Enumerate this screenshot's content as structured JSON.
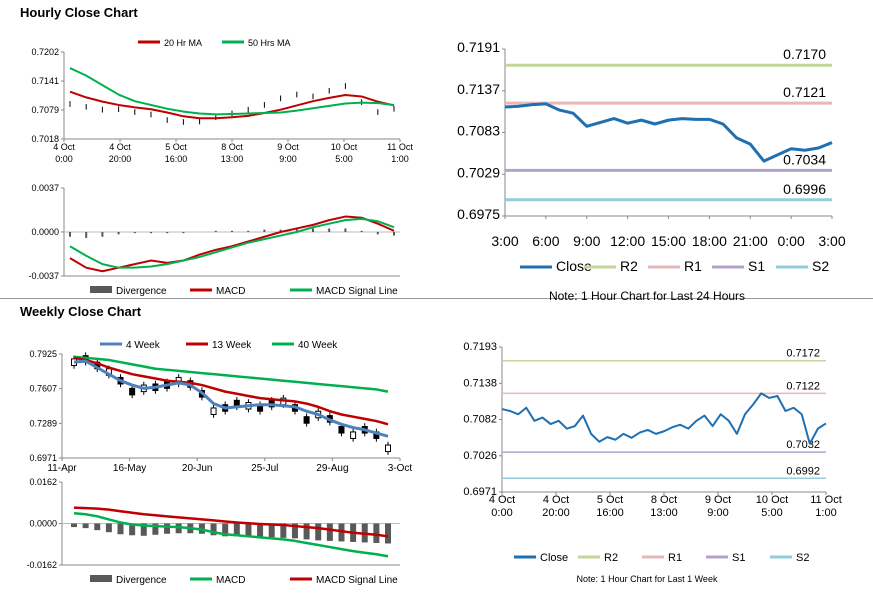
{
  "sections": {
    "hourly_title": "Hourly Close Chart",
    "weekly_title": "Weekly Close Chart"
  },
  "colors": {
    "ma_fast": "#c00000",
    "ma_slow": "#00b050",
    "week4": "#4f81bd",
    "close": "#1f6fb2",
    "r2": "#c3d69b",
    "r1": "#e6b9b8",
    "s1": "#b3a2c7",
    "s2": "#93cddd",
    "hist": "#595959"
  },
  "chart_data": [
    {
      "id": "hourly_price",
      "type": "line",
      "legend": [
        "20 Hr MA",
        "50 Hrs MA"
      ],
      "legend_position": "top",
      "yticks": [
        "0.7202",
        "0.7141",
        "0.7079",
        "0.7018"
      ],
      "ylim": [
        0.7018,
        0.7202
      ],
      "xticks": [
        [
          "4 Oct",
          "0:00"
        ],
        [
          "4 Oct",
          "20:00"
        ],
        [
          "5 Oct",
          "16:00"
        ],
        [
          "8 Oct",
          "13:00"
        ],
        [
          "9 Oct",
          "9:00"
        ],
        [
          "10 Oct",
          "5:00"
        ],
        [
          "11 Oct",
          "1:00"
        ]
      ],
      "x": [
        0,
        6,
        12,
        18,
        24,
        30,
        36,
        42,
        48,
        54,
        60,
        66,
        72,
        78,
        84,
        90,
        96,
        102,
        108,
        114,
        120
      ],
      "series": [
        {
          "name": "Close",
          "style": "ohlc",
          "values": [
            0.7092,
            0.7086,
            0.708,
            0.7081,
            0.7075,
            0.707,
            0.7058,
            0.7054,
            0.7055,
            0.7064,
            0.7072,
            0.708,
            0.709,
            0.7104,
            0.7112,
            0.7108,
            0.712,
            0.713,
            0.7096,
            0.7075,
            0.7082
          ]
        },
        {
          "name": "20 Hr MA",
          "values": [
            0.7118,
            0.7106,
            0.7097,
            0.709,
            0.7085,
            0.7081,
            0.7074,
            0.7066,
            0.7062,
            0.7062,
            0.7064,
            0.7067,
            0.7073,
            0.708,
            0.7089,
            0.7098,
            0.7105,
            0.7111,
            0.7108,
            0.7097,
            0.7089
          ]
        },
        {
          "name": "50 Hrs MA",
          "values": [
            0.7168,
            0.7152,
            0.7132,
            0.7112,
            0.7098,
            0.709,
            0.7082,
            0.7076,
            0.7072,
            0.707,
            0.7071,
            0.7072,
            0.7073,
            0.7074,
            0.7078,
            0.7083,
            0.7088,
            0.7093,
            0.7095,
            0.7094,
            0.709
          ]
        }
      ]
    },
    {
      "id": "hourly_macd",
      "type": "line",
      "legend": [
        "Divergence",
        "MACD",
        "MACD Signal Line"
      ],
      "legend_position": "bottom",
      "yticks": [
        "0.0037",
        "0.0000",
        "-0.0037"
      ],
      "ylim": [
        -0.0037,
        0.0037
      ],
      "x": [
        0,
        6,
        12,
        18,
        24,
        30,
        36,
        42,
        48,
        54,
        60,
        66,
        72,
        78,
        84,
        90,
        96,
        102,
        108,
        114,
        120
      ],
      "series": [
        {
          "name": "MACD",
          "values": [
            -0.0022,
            -0.003,
            -0.0033,
            -0.003,
            -0.0027,
            -0.0024,
            -0.0026,
            -0.0024,
            -0.0019,
            -0.0015,
            -0.0012,
            -0.0008,
            -0.0004,
            0.0,
            0.0003,
            0.0006,
            0.001,
            0.0013,
            0.0012,
            0.0007,
            0.0001
          ]
        },
        {
          "name": "MACD Signal Line",
          "values": [
            -0.0012,
            -0.002,
            -0.0027,
            -0.003,
            -0.003,
            -0.0029,
            -0.0027,
            -0.0024,
            -0.0021,
            -0.0017,
            -0.0013,
            -0.0009,
            -0.0006,
            -0.0003,
            0.0,
            0.0004,
            0.0007,
            0.001,
            0.0011,
            0.0009,
            0.0004
          ]
        },
        {
          "name": "Divergence",
          "style": "bar",
          "values": [
            -0.0004,
            -0.0005,
            -0.0004,
            -0.0002,
            -0.0001,
            -0.0001,
            -0.0001,
            -0.0001,
            0.0,
            0.0001,
            0.0001,
            0.0001,
            0.0002,
            0.0002,
            0.0003,
            0.0003,
            0.0003,
            0.0003,
            0.0001,
            -0.0002,
            -0.0003
          ]
        }
      ]
    },
    {
      "id": "hourly_levels",
      "type": "line",
      "note": "Note: 1 Hour Chart for Last 24 Hours",
      "legend": [
        "Close",
        "R2",
        "R1",
        "S1",
        "S2"
      ],
      "legend_position": "bottom",
      "yticks": [
        "0.7191",
        "0.7137",
        "0.7083",
        "0.7029",
        "0.6975"
      ],
      "ylim": [
        0.6975,
        0.7191
      ],
      "xticks": [
        "3:00",
        "6:00",
        "9:00",
        "12:00",
        "15:00",
        "18:00",
        "21:00",
        "0:00",
        "3:00"
      ],
      "x": [
        0,
        1,
        2,
        3,
        4,
        5,
        6,
        7,
        8,
        9,
        10,
        11,
        12,
        13,
        14,
        15,
        16,
        17,
        18,
        19,
        20,
        21,
        22,
        23,
        24
      ],
      "series": [
        {
          "name": "Close",
          "values": [
            0.7116,
            0.7117,
            0.7119,
            0.712,
            0.7112,
            0.7108,
            0.7091,
            0.7096,
            0.7101,
            0.7095,
            0.7099,
            0.7094,
            0.7099,
            0.7101,
            0.71,
            0.71,
            0.7094,
            0.7076,
            0.7068,
            0.7046,
            0.7054,
            0.7062,
            0.706,
            0.7063,
            0.707
          ]
        },
        {
          "name": "R2",
          "level": 0.717
        },
        {
          "name": "R1",
          "level": 0.7121
        },
        {
          "name": "S1",
          "level": 0.7034
        },
        {
          "name": "S2",
          "level": 0.6996
        }
      ],
      "level_labels": [
        "0.7170",
        "0.7121",
        "0.7034",
        "0.6996"
      ]
    },
    {
      "id": "weekly_price",
      "type": "line",
      "legend": [
        "4 Week",
        "13 Week",
        "40 Week"
      ],
      "legend_position": "top",
      "yticks": [
        "0.7925",
        "0.7607",
        "0.7289",
        "0.6971"
      ],
      "ylim": [
        0.6971,
        0.7925
      ],
      "xticks": [
        "11-Apr",
        "16-May",
        "20-Jun",
        "25-Jul",
        "29-Aug",
        "3-Oct"
      ],
      "x": [
        0,
        1,
        2,
        3,
        4,
        5,
        6,
        7,
        8,
        9,
        10,
        11,
        12,
        13,
        14,
        15,
        16,
        17,
        18,
        19,
        20,
        21,
        22,
        23,
        24,
        25,
        26,
        27
      ],
      "series": [
        {
          "name": "Close",
          "style": "candle",
          "values": [
            0.785,
            0.788,
            0.782,
            0.776,
            0.768,
            0.758,
            0.761,
            0.762,
            0.764,
            0.768,
            0.765,
            0.756,
            0.74,
            0.743,
            0.747,
            0.745,
            0.743,
            0.747,
            0.749,
            0.743,
            0.732,
            0.737,
            0.733,
            0.723,
            0.718,
            0.723,
            0.718,
            0.706
          ]
        },
        {
          "name": "4 Week",
          "values": [
            0.785,
            0.786,
            0.78,
            0.774,
            0.768,
            0.764,
            0.761,
            0.762,
            0.764,
            0.766,
            0.764,
            0.757,
            0.747,
            0.743,
            0.744,
            0.745,
            0.746,
            0.746,
            0.745,
            0.744,
            0.74,
            0.737,
            0.732,
            0.728,
            0.725,
            0.723,
            0.72,
            0.717
          ]
        },
        {
          "name": "13 Week",
          "values": [
            0.789,
            0.787,
            0.784,
            0.78,
            0.777,
            0.774,
            0.772,
            0.77,
            0.768,
            0.767,
            0.766,
            0.764,
            0.761,
            0.758,
            0.756,
            0.754,
            0.752,
            0.751,
            0.75,
            0.749,
            0.747,
            0.744,
            0.74,
            0.737,
            0.735,
            0.733,
            0.731,
            0.728
          ]
        },
        {
          "name": "40 Week",
          "values": [
            0.79,
            0.789,
            0.788,
            0.787,
            0.785,
            0.783,
            0.781,
            0.779,
            0.778,
            0.777,
            0.776,
            0.775,
            0.774,
            0.773,
            0.772,
            0.771,
            0.77,
            0.769,
            0.768,
            0.767,
            0.766,
            0.765,
            0.764,
            0.763,
            0.762,
            0.761,
            0.76,
            0.758
          ]
        }
      ]
    },
    {
      "id": "weekly_macd",
      "type": "line",
      "legend": [
        "Divergence",
        "MACD",
        "MACD Signal Line"
      ],
      "legend_position": "bottom",
      "yticks": [
        "0.0162",
        "0.0000",
        "-0.0162"
      ],
      "ylim": [
        -0.0162,
        0.0162
      ],
      "x": [
        0,
        1,
        2,
        3,
        4,
        5,
        6,
        7,
        8,
        9,
        10,
        11,
        12,
        13,
        14,
        15,
        16,
        17,
        18,
        19,
        20,
        21,
        22,
        23,
        24,
        25,
        26,
        27
      ],
      "series": [
        {
          "name": "MACD",
          "values": [
            0.004,
            0.0036,
            0.0028,
            0.0016,
            0.0004,
            -0.0004,
            -0.0008,
            -0.001,
            -0.0012,
            -0.0014,
            -0.0018,
            -0.0024,
            -0.0034,
            -0.0042,
            -0.0046,
            -0.005,
            -0.0054,
            -0.0058,
            -0.0062,
            -0.0068,
            -0.0076,
            -0.0084,
            -0.0092,
            -0.01,
            -0.0108,
            -0.0114,
            -0.012,
            -0.0128
          ]
        },
        {
          "name": "MACD Signal Line",
          "values": [
            0.0062,
            0.006,
            0.0058,
            0.0054,
            0.0048,
            0.0042,
            0.0036,
            0.0032,
            0.0028,
            0.0024,
            0.002,
            0.0016,
            0.0012,
            0.0008,
            0.0004,
            0.0001,
            -0.0002,
            -0.0004,
            -0.0006,
            -0.001,
            -0.0014,
            -0.0018,
            -0.0024,
            -0.003,
            -0.0036,
            -0.004,
            -0.0044,
            -0.005
          ]
        },
        {
          "name": "Divergence",
          "style": "bar",
          "values": [
            -0.0014,
            -0.0018,
            -0.0026,
            -0.0034,
            -0.0042,
            -0.0046,
            -0.0048,
            -0.0044,
            -0.004,
            -0.0038,
            -0.0038,
            -0.004,
            -0.0046,
            -0.005,
            -0.005,
            -0.0051,
            -0.0052,
            -0.0054,
            -0.0056,
            -0.0058,
            -0.0062,
            -0.0066,
            -0.0068,
            -0.007,
            -0.0072,
            -0.0074,
            -0.0076,
            -0.0078
          ]
        }
      ]
    },
    {
      "id": "weekly_levels",
      "type": "line",
      "note": "Note: 1 Hour Chart for Last 1 Week",
      "legend": [
        "Close",
        "R2",
        "R1",
        "S1",
        "S2"
      ],
      "legend_position": "bottom",
      "yticks": [
        "0.7193",
        "0.7138",
        "0.7082",
        "0.7026",
        "0.6971"
      ],
      "ylim": [
        0.6971,
        0.7193
      ],
      "xticks": [
        [
          "4 Oct",
          "0:00"
        ],
        [
          "4 Oct",
          "20:00"
        ],
        [
          "5 Oct",
          "16:00"
        ],
        [
          "8 Oct",
          "13:00"
        ],
        [
          "9 Oct",
          "9:00"
        ],
        [
          "10 Oct",
          "5:00"
        ],
        [
          "11 Oct",
          "1:00"
        ]
      ],
      "x": [
        0,
        3,
        6,
        9,
        12,
        15,
        18,
        21,
        24,
        27,
        30,
        33,
        36,
        39,
        42,
        45,
        48,
        51,
        54,
        57,
        60,
        63,
        66,
        69,
        72,
        75,
        78,
        81,
        84,
        87,
        90,
        93,
        96,
        99,
        102,
        105,
        108,
        111,
        114,
        117,
        120
      ],
      "series": [
        {
          "name": "Close",
          "values": [
            0.7098,
            0.7095,
            0.709,
            0.71,
            0.708,
            0.7085,
            0.7075,
            0.708,
            0.7068,
            0.7072,
            0.7088,
            0.706,
            0.7048,
            0.7055,
            0.7051,
            0.706,
            0.7054,
            0.7062,
            0.7066,
            0.706,
            0.7064,
            0.707,
            0.7074,
            0.7068,
            0.708,
            0.7088,
            0.7072,
            0.709,
            0.708,
            0.706,
            0.709,
            0.7105,
            0.7122,
            0.7115,
            0.7118,
            0.7095,
            0.71,
            0.709,
            0.7045,
            0.7068,
            0.7076
          ]
        },
        {
          "name": "R2",
          "level": 0.7172
        },
        {
          "name": "R1",
          "level": 0.7122
        },
        {
          "name": "S1",
          "level": 0.7032
        },
        {
          "name": "S2",
          "level": 0.6992
        }
      ],
      "level_labels": [
        "0.7172",
        "0.7122",
        "0.7032",
        "0.6992"
      ]
    }
  ]
}
